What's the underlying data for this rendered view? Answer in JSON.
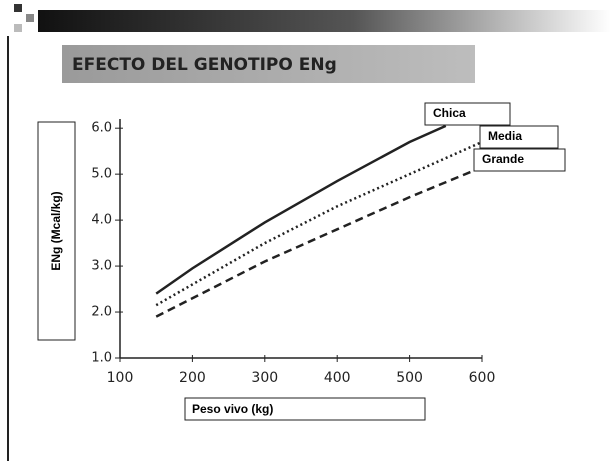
{
  "chart_data": {
    "type": "line",
    "title": "EFECTO DEL GENOTIPO ENg",
    "xlabel": "Peso vivo (kg)",
    "ylabel": "ENg (Mcal/kg)",
    "xlim": [
      100,
      600
    ],
    "ylim": [
      1,
      6.2
    ],
    "xticks": [
      100,
      200,
      300,
      400,
      500,
      600
    ],
    "yticks": [
      {
        "value": 1,
        "label": "1.0"
      },
      {
        "value": 2,
        "label": "2.0"
      },
      {
        "value": 3,
        "label": "3.0"
      },
      {
        "value": 4,
        "label": "4.0"
      },
      {
        "value": 5,
        "label": "5.0"
      },
      {
        "value": 6,
        "label": "6.0"
      }
    ],
    "grid": false,
    "series": [
      {
        "name": "Chica",
        "color": "#222222",
        "dash": "solid",
        "x": [
          150,
          200,
          300,
          400,
          500,
          550
        ],
        "values": [
          2.4,
          2.95,
          3.95,
          4.85,
          5.7,
          6.05
        ]
      },
      {
        "name": "Media",
        "color": "#222222",
        "dash": "dotted",
        "x": [
          150,
          200,
          300,
          400,
          500,
          600
        ],
        "values": [
          2.15,
          2.6,
          3.5,
          4.3,
          5.0,
          5.7
        ]
      },
      {
        "name": "Grande",
        "color": "#222222",
        "dash": "dashed",
        "x": [
          150,
          200,
          300,
          400,
          500,
          600
        ],
        "values": [
          1.9,
          2.3,
          3.1,
          3.8,
          4.5,
          5.15
        ]
      }
    ]
  }
}
